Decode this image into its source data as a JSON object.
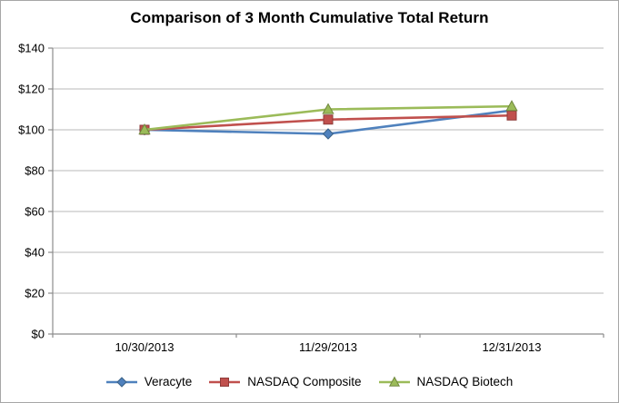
{
  "window": {
    "background": "#FFFFFF",
    "border_color": "#A6A6A6"
  },
  "chart_data": {
    "type": "line",
    "title": "Comparison of 3 Month Cumulative Total Return",
    "x_categories": [
      "10/30/2013",
      "11/29/2013",
      "12/31/2013"
    ],
    "series": [
      {
        "name": "Veracyte",
        "marker": "diamond",
        "color": "#4F81BD",
        "marker_edge": "#3A6186",
        "values": [
          100,
          98,
          109.5
        ]
      },
      {
        "name": "NASDAQ Composite",
        "marker": "square",
        "color": "#C0504D",
        "marker_edge": "#8E3B39",
        "values": [
          100,
          105,
          107
        ]
      },
      {
        "name": "NASDAQ Biotech",
        "marker": "triangle",
        "color": "#9BBB59",
        "marker_edge": "#71893F",
        "values": [
          100,
          110,
          111.5
        ]
      }
    ],
    "ylim": [
      0,
      140
    ],
    "ytick_step": 20,
    "yticks": [
      {
        "value": 0,
        "label": "$0"
      },
      {
        "value": 20,
        "label": "$20"
      },
      {
        "value": 40,
        "label": "$40"
      },
      {
        "value": 60,
        "label": "$60"
      },
      {
        "value": 80,
        "label": "$80"
      },
      {
        "value": 100,
        "label": "$100"
      },
      {
        "value": 120,
        "label": "$120"
      },
      {
        "value": 140,
        "label": "$140"
      }
    ],
    "grid": true,
    "legend_position": "bottom",
    "axis_color": "#8C8C8C",
    "grid_color": "#C6C6C6",
    "text_color": "#000000"
  }
}
